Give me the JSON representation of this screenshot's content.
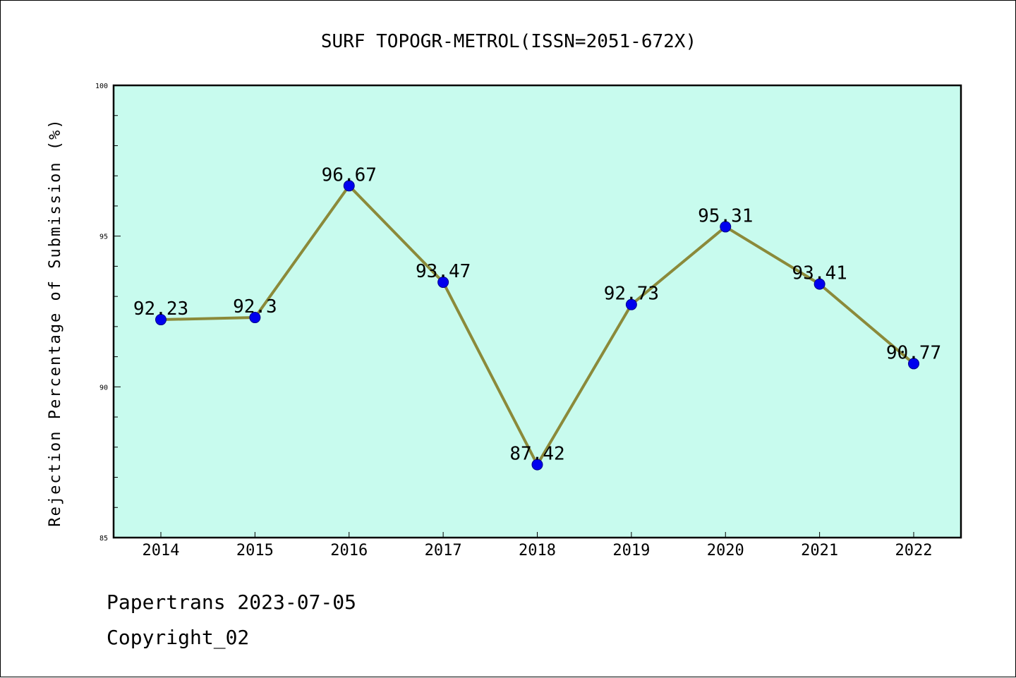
{
  "chart_data": {
    "type": "line",
    "title": "SURF TOPOGR-METROL(ISSN=2051-672X)",
    "ylabel": "Rejection Percentage of Submission (%)",
    "xlabel": "",
    "categories": [
      "2014",
      "2015",
      "2016",
      "2017",
      "2018",
      "2019",
      "2020",
      "2021",
      "2022"
    ],
    "series": [
      {
        "values": [
          92.23,
          92.3,
          96.67,
          93.47,
          87.42,
          92.73,
          95.31,
          93.41,
          90.77
        ],
        "labels": [
          "92.23",
          "92.3",
          "96.67",
          "93.47",
          "87.42",
          "92.73",
          "95.31",
          "93.41",
          "90.77"
        ]
      }
    ],
    "ylim": [
      85,
      100
    ],
    "yticks": [
      "85",
      "90",
      "95",
      "100"
    ],
    "grid": false,
    "colors": {
      "plot_background": "#c8fbee",
      "line": "#8b8a3a",
      "marker": "#0000ee"
    }
  },
  "footer": {
    "line1": "Papertrans 2023-07-05",
    "line2": "Copyright_02"
  }
}
